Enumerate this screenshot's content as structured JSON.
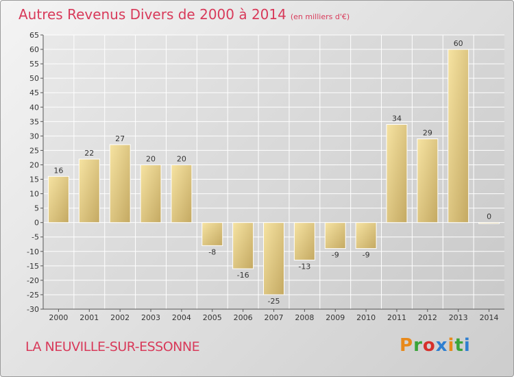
{
  "header": {
    "title": "Autres Revenus Divers de 2000 à 2014",
    "unit": "(en milliers d'€)"
  },
  "footer": {
    "location": "LA NEUVILLE-SUR-ESSONNE",
    "brand": "Proxiti",
    "brand_colors": [
      "#e8891a",
      "#3aa43a",
      "#d6302a",
      "#2f7fd0",
      "#e8891a",
      "#3aa43a",
      "#2f7fd0"
    ]
  },
  "colors": {
    "title": "#d83a5a",
    "bar_light": "#f6e3a2",
    "bar_dark": "#c4a962",
    "grid": "#ffffff",
    "axis": "#555555"
  },
  "chart_data": {
    "type": "bar",
    "title": "Autres Revenus Divers de 2000 à 2014",
    "categories": [
      "2000",
      "2001",
      "2002",
      "2003",
      "2004",
      "2005",
      "2006",
      "2007",
      "2008",
      "2009",
      "2010",
      "2011",
      "2012",
      "2013",
      "2014"
    ],
    "values": [
      16,
      22,
      27,
      20,
      20,
      -8,
      -16,
      -25,
      -13,
      -9,
      -9,
      34,
      29,
      60,
      0
    ],
    "ylim": [
      -30,
      65
    ],
    "yticks": [
      65,
      60,
      55,
      50,
      45,
      40,
      35,
      30,
      25,
      20,
      15,
      10,
      5,
      0,
      -5,
      -10,
      -15,
      -20,
      -25,
      -30
    ],
    "grid": true,
    "xlabel": "",
    "ylabel": ""
  }
}
